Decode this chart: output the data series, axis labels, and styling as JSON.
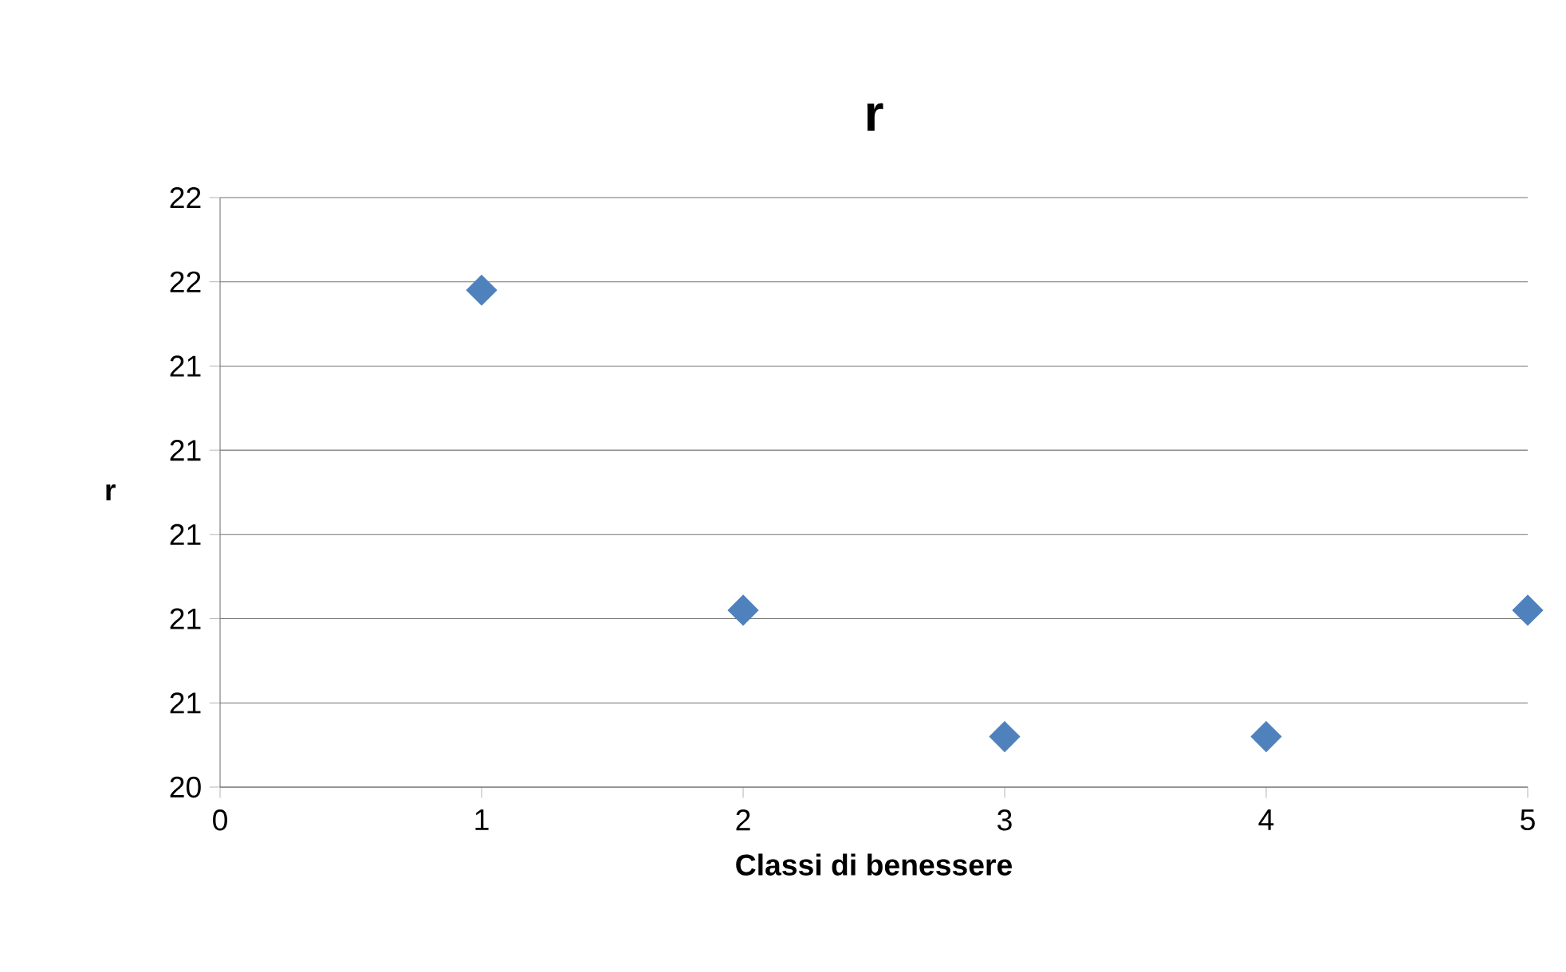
{
  "chart_data": {
    "type": "scatter",
    "title": "r",
    "xlabel": "Classi di benessere",
    "ylabel": "r",
    "x": [
      1,
      2,
      3,
      4,
      5
    ],
    "series": [
      {
        "color": "#4f81bd",
        "values": [
          21.58,
          20.82,
          20.52,
          20.52,
          20.82
        ]
      }
    ],
    "xlim": [
      0,
      5
    ],
    "xticks": [
      0,
      1,
      2,
      3,
      4,
      5
    ],
    "ylim": [
      20.4,
      21.8
    ],
    "yticks": [
      {
        "value": 20.4,
        "label": "20"
      },
      {
        "value": 20.6,
        "label": "21"
      },
      {
        "value": 20.8,
        "label": "21"
      },
      {
        "value": 21.0,
        "label": "21"
      },
      {
        "value": 21.2,
        "label": "21"
      },
      {
        "value": 21.4,
        "label": "21"
      },
      {
        "value": 21.6,
        "label": "22"
      },
      {
        "value": 21.8,
        "label": "22"
      }
    ],
    "grid": "y",
    "marker": "diamond"
  }
}
